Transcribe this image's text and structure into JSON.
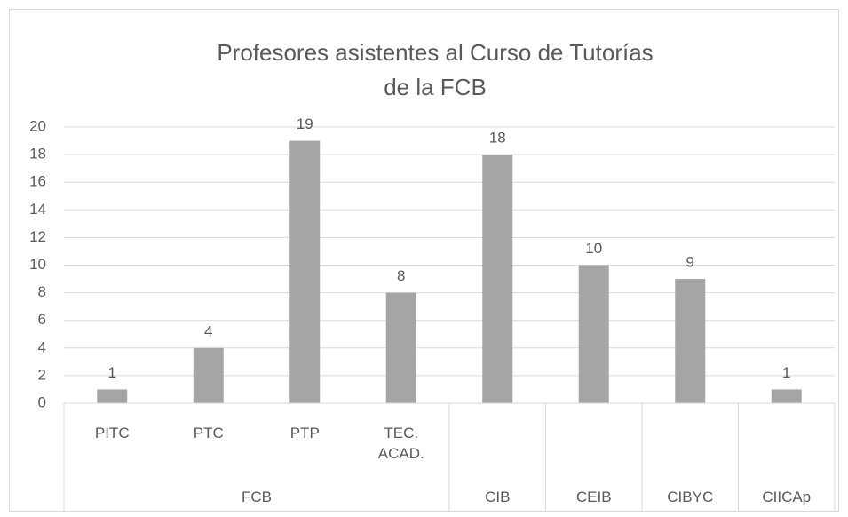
{
  "chart_data": {
    "type": "bar",
    "title": "Profesores asistentes al Curso de Tutorías de la FCB",
    "categories": [
      "PITC",
      "PTC",
      "PTP",
      "TEC. ACAD.",
      null,
      null,
      null,
      null
    ],
    "groups": [
      "FCB",
      "FCB",
      "FCB",
      "FCB",
      "CIB",
      "CEIB",
      "CIBYC",
      "CIICAp"
    ],
    "values": [
      1,
      4,
      19,
      8,
      18,
      10,
      9,
      1
    ],
    "color": "#a5a5a5",
    "ylim": [
      0,
      20
    ],
    "yticks": [
      0,
      2,
      4,
      6,
      8,
      10,
      12,
      14,
      16,
      18,
      20
    ],
    "grid": true,
    "data_labels": true
  }
}
